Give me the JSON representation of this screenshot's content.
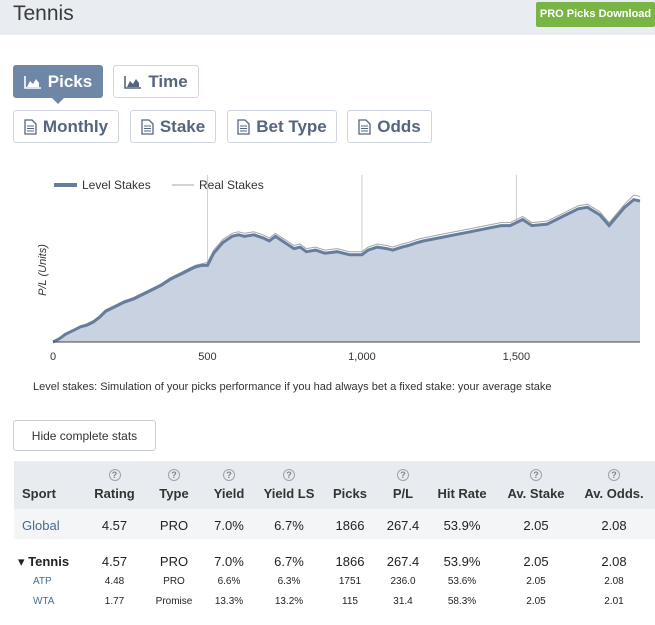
{
  "header": {
    "title": "Tennis",
    "download_label": "PRO Picks Download"
  },
  "tabs_row1": [
    {
      "label": "Picks",
      "icon": "area-chart-icon",
      "active": true
    },
    {
      "label": "Time",
      "icon": "area-chart-icon",
      "active": false
    }
  ],
  "tabs_row2": [
    {
      "label": "Monthly",
      "icon": "document-icon"
    },
    {
      "label": "Stake",
      "icon": "document-icon"
    },
    {
      "label": "Bet Type",
      "icon": "document-icon"
    },
    {
      "label": "Odds",
      "icon": "document-icon"
    }
  ],
  "chart_data": {
    "type": "area",
    "ylabel": "P/L (Units)",
    "xlabel": "",
    "x_ticks": [
      "0",
      "500",
      "1,000",
      "1,500"
    ],
    "xlim": [
      0,
      1900
    ],
    "legend": {
      "placement": "top-left",
      "entries": [
        "Level Stakes",
        "Real Stakes"
      ]
    },
    "grid": "vertical",
    "series": [
      {
        "name": "Level Stakes",
        "x": [
          0,
          20,
          40,
          50,
          70,
          90,
          110,
          130,
          150,
          170,
          200,
          230,
          260,
          290,
          320,
          350,
          380,
          400,
          420,
          440,
          460,
          480,
          500,
          520,
          550,
          580,
          600,
          620,
          650,
          680,
          700,
          720,
          750,
          780,
          800,
          820,
          850,
          880,
          920,
          960,
          1000,
          1020,
          1050,
          1080,
          1100,
          1130,
          1150,
          1180,
          1200,
          1250,
          1300,
          1350,
          1400,
          1450,
          1480,
          1520,
          1550,
          1600,
          1650,
          1700,
          1730,
          1770,
          1800,
          1850,
          1880,
          1900
        ],
        "y": [
          0,
          0.2,
          0.5,
          0.6,
          0.8,
          1.0,
          1.1,
          1.3,
          1.6,
          2.0,
          2.3,
          2.6,
          2.8,
          3.1,
          3.4,
          3.7,
          4.1,
          4.3,
          4.5,
          4.7,
          4.9,
          5.0,
          5.0,
          5.8,
          6.5,
          6.9,
          7.0,
          6.9,
          7.0,
          6.8,
          6.6,
          6.9,
          6.5,
          6.1,
          6.2,
          5.9,
          6.0,
          5.8,
          5.9,
          5.7,
          5.7,
          6.0,
          6.2,
          6.1,
          6.0,
          6.2,
          6.3,
          6.5,
          6.6,
          6.8,
          7.0,
          7.2,
          7.4,
          7.6,
          7.6,
          8.0,
          7.6,
          7.7,
          8.2,
          8.7,
          8.8,
          8.3,
          7.6,
          8.8,
          9.3,
          9.2
        ]
      },
      {
        "name": "Real Stakes",
        "x": [
          0,
          20,
          40,
          50,
          70,
          90,
          110,
          130,
          150,
          170,
          200,
          230,
          260,
          290,
          320,
          350,
          380,
          400,
          420,
          440,
          460,
          480,
          500,
          520,
          550,
          580,
          600,
          620,
          650,
          680,
          700,
          720,
          750,
          780,
          800,
          820,
          850,
          880,
          920,
          960,
          1000,
          1020,
          1050,
          1080,
          1100,
          1130,
          1150,
          1180,
          1200,
          1250,
          1300,
          1350,
          1400,
          1450,
          1480,
          1520,
          1550,
          1600,
          1650,
          1700,
          1730,
          1770,
          1800,
          1850,
          1880,
          1900
        ],
        "y": [
          0.05,
          0.25,
          0.55,
          0.65,
          0.85,
          1.05,
          1.2,
          1.4,
          1.7,
          2.1,
          2.4,
          2.7,
          2.9,
          3.2,
          3.5,
          3.8,
          4.2,
          4.4,
          4.6,
          4.8,
          5.0,
          5.1,
          5.2,
          6.0,
          6.7,
          7.1,
          7.2,
          7.1,
          7.2,
          7.0,
          6.8,
          7.1,
          6.7,
          6.3,
          6.4,
          6.1,
          6.2,
          6.0,
          6.1,
          5.9,
          5.9,
          6.2,
          6.4,
          6.3,
          6.2,
          6.4,
          6.5,
          6.7,
          6.8,
          7.0,
          7.2,
          7.4,
          7.6,
          7.8,
          7.8,
          8.2,
          7.8,
          7.9,
          8.4,
          8.9,
          9.0,
          8.5,
          7.8,
          9.0,
          9.6,
          9.5
        ]
      }
    ]
  },
  "level_note": "Level stakes: Simulation of your picks performance if you had always bet a fixed stake: your average stake",
  "hide_stats_label": "Hide complete stats",
  "stats": {
    "columns": [
      "Sport",
      "Rating",
      "Type",
      "Yield",
      "Yield LS",
      "Picks",
      "P/L",
      "Hit Rate",
      "Av. Stake",
      "Av. Odds."
    ],
    "rows": [
      {
        "sport": "Global",
        "rating": "4.57",
        "type": "PRO",
        "yield": "7.0%",
        "yield_ls": "6.7%",
        "picks": "1866",
        "pl": "267.4",
        "hit_rate": "53.9%",
        "av_stake": "2.05",
        "av_odds": "2.08"
      },
      {
        "sport": "Tennis",
        "rating": "4.57",
        "type": "PRO",
        "yield": "7.0%",
        "yield_ls": "6.7%",
        "picks": "1866",
        "pl": "267.4",
        "hit_rate": "53.9%",
        "av_stake": "2.05",
        "av_odds": "2.08"
      },
      {
        "sport": "ATP",
        "rating": "4.48",
        "type": "PRO",
        "yield": "6.6%",
        "yield_ls": "6.3%",
        "picks": "1751",
        "pl": "236.0",
        "hit_rate": "53.6%",
        "av_stake": "2.05",
        "av_odds": "2.08"
      },
      {
        "sport": "WTA",
        "rating": "1.77",
        "type": "Promise",
        "yield": "13.3%",
        "yield_ls": "13.2%",
        "picks": "115",
        "pl": "31.4",
        "hit_rate": "58.3%",
        "av_stake": "2.05",
        "av_odds": "2.01"
      }
    ]
  }
}
